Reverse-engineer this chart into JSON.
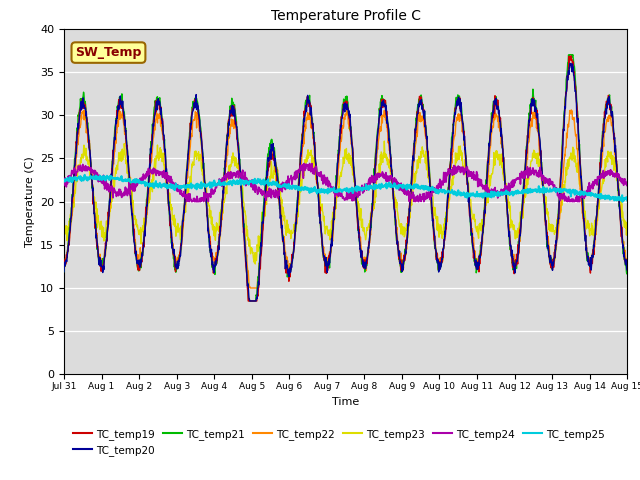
{
  "title": "Temperature Profile C",
  "xlabel": "Time",
  "ylabel": "Temperature (C)",
  "ylim": [
    0,
    40
  ],
  "yticks": [
    0,
    5,
    10,
    15,
    20,
    25,
    30,
    35,
    40
  ],
  "background_color": "#dcdcdc",
  "fig_facecolor": "#ffffff",
  "series": [
    {
      "name": "TC_temp19",
      "color": "#cc0000",
      "lw": 1.0,
      "zorder": 5
    },
    {
      "name": "TC_temp20",
      "color": "#000099",
      "lw": 1.0,
      "zorder": 5
    },
    {
      "name": "TC_temp21",
      "color": "#00bb00",
      "lw": 1.0,
      "zorder": 4
    },
    {
      "name": "TC_temp22",
      "color": "#ff8800",
      "lw": 1.0,
      "zorder": 3
    },
    {
      "name": "TC_temp23",
      "color": "#dddd00",
      "lw": 1.0,
      "zorder": 2
    },
    {
      "name": "TC_temp24",
      "color": "#aa00aa",
      "lw": 1.2,
      "zorder": 6
    },
    {
      "name": "TC_temp25",
      "color": "#00ccdd",
      "lw": 1.5,
      "zorder": 7
    }
  ],
  "sw_temp_box": {
    "text": "SW_Temp",
    "facecolor": "#ffff99",
    "edgecolor": "#996600",
    "textcolor": "#880000",
    "fontsize": 9
  },
  "xtick_labels": [
    "Jul 31",
    "Aug 1",
    "Aug 2",
    "Aug 3",
    "Aug 4",
    "Aug 5",
    "Aug 6",
    "Aug 7",
    "Aug 8",
    "Aug 9",
    "Aug 10",
    "Aug 11",
    "Aug 12",
    "Aug 13",
    "Aug 14",
    "Aug 15"
  ],
  "n_days": 15,
  "seed": 42
}
